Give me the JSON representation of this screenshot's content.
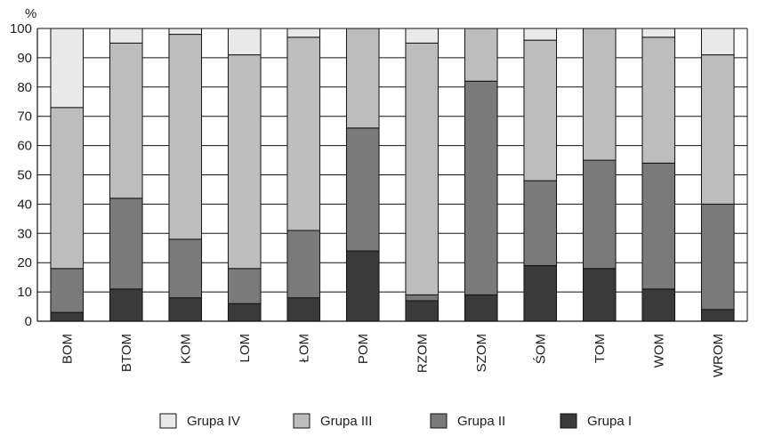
{
  "chart_data": {
    "type": "bar",
    "stacked": true,
    "percent_stacked": true,
    "ylabel": "%",
    "ylim": [
      0,
      100
    ],
    "yticks": [
      0,
      10,
      20,
      30,
      40,
      50,
      60,
      70,
      80,
      90,
      100
    ],
    "grid": "horizontal",
    "legend_position": "bottom",
    "categories": [
      "BOM",
      "BTOM",
      "KOM",
      "LOM",
      "ŁOM",
      "POM",
      "RZOM",
      "SZOM",
      "ŚOM",
      "TOM",
      "WOM",
      "WROM"
    ],
    "series": [
      {
        "name": "Grupa I",
        "color": "#3a3a3a",
        "values": [
          3,
          11,
          8,
          6,
          8,
          24,
          7,
          9,
          19,
          18,
          11,
          4
        ]
      },
      {
        "name": "Grupa II",
        "color": "#7a7a7a",
        "values": [
          15,
          31,
          20,
          12,
          23,
          42,
          2,
          73,
          29,
          37,
          43,
          36
        ]
      },
      {
        "name": "Grupa III",
        "color": "#bdbdbd",
        "values": [
          55,
          53,
          70,
          73,
          66,
          34,
          86,
          18,
          48,
          45,
          43,
          51
        ]
      },
      {
        "name": "Grupa IV",
        "color": "#e9e9e9",
        "values": [
          27,
          5,
          2,
          9,
          3,
          0,
          5,
          0,
          4,
          0,
          3,
          9
        ]
      }
    ],
    "legend_order": [
      "Grupa IV",
      "Grupa III",
      "Grupa II",
      "Grupa I"
    ]
  }
}
